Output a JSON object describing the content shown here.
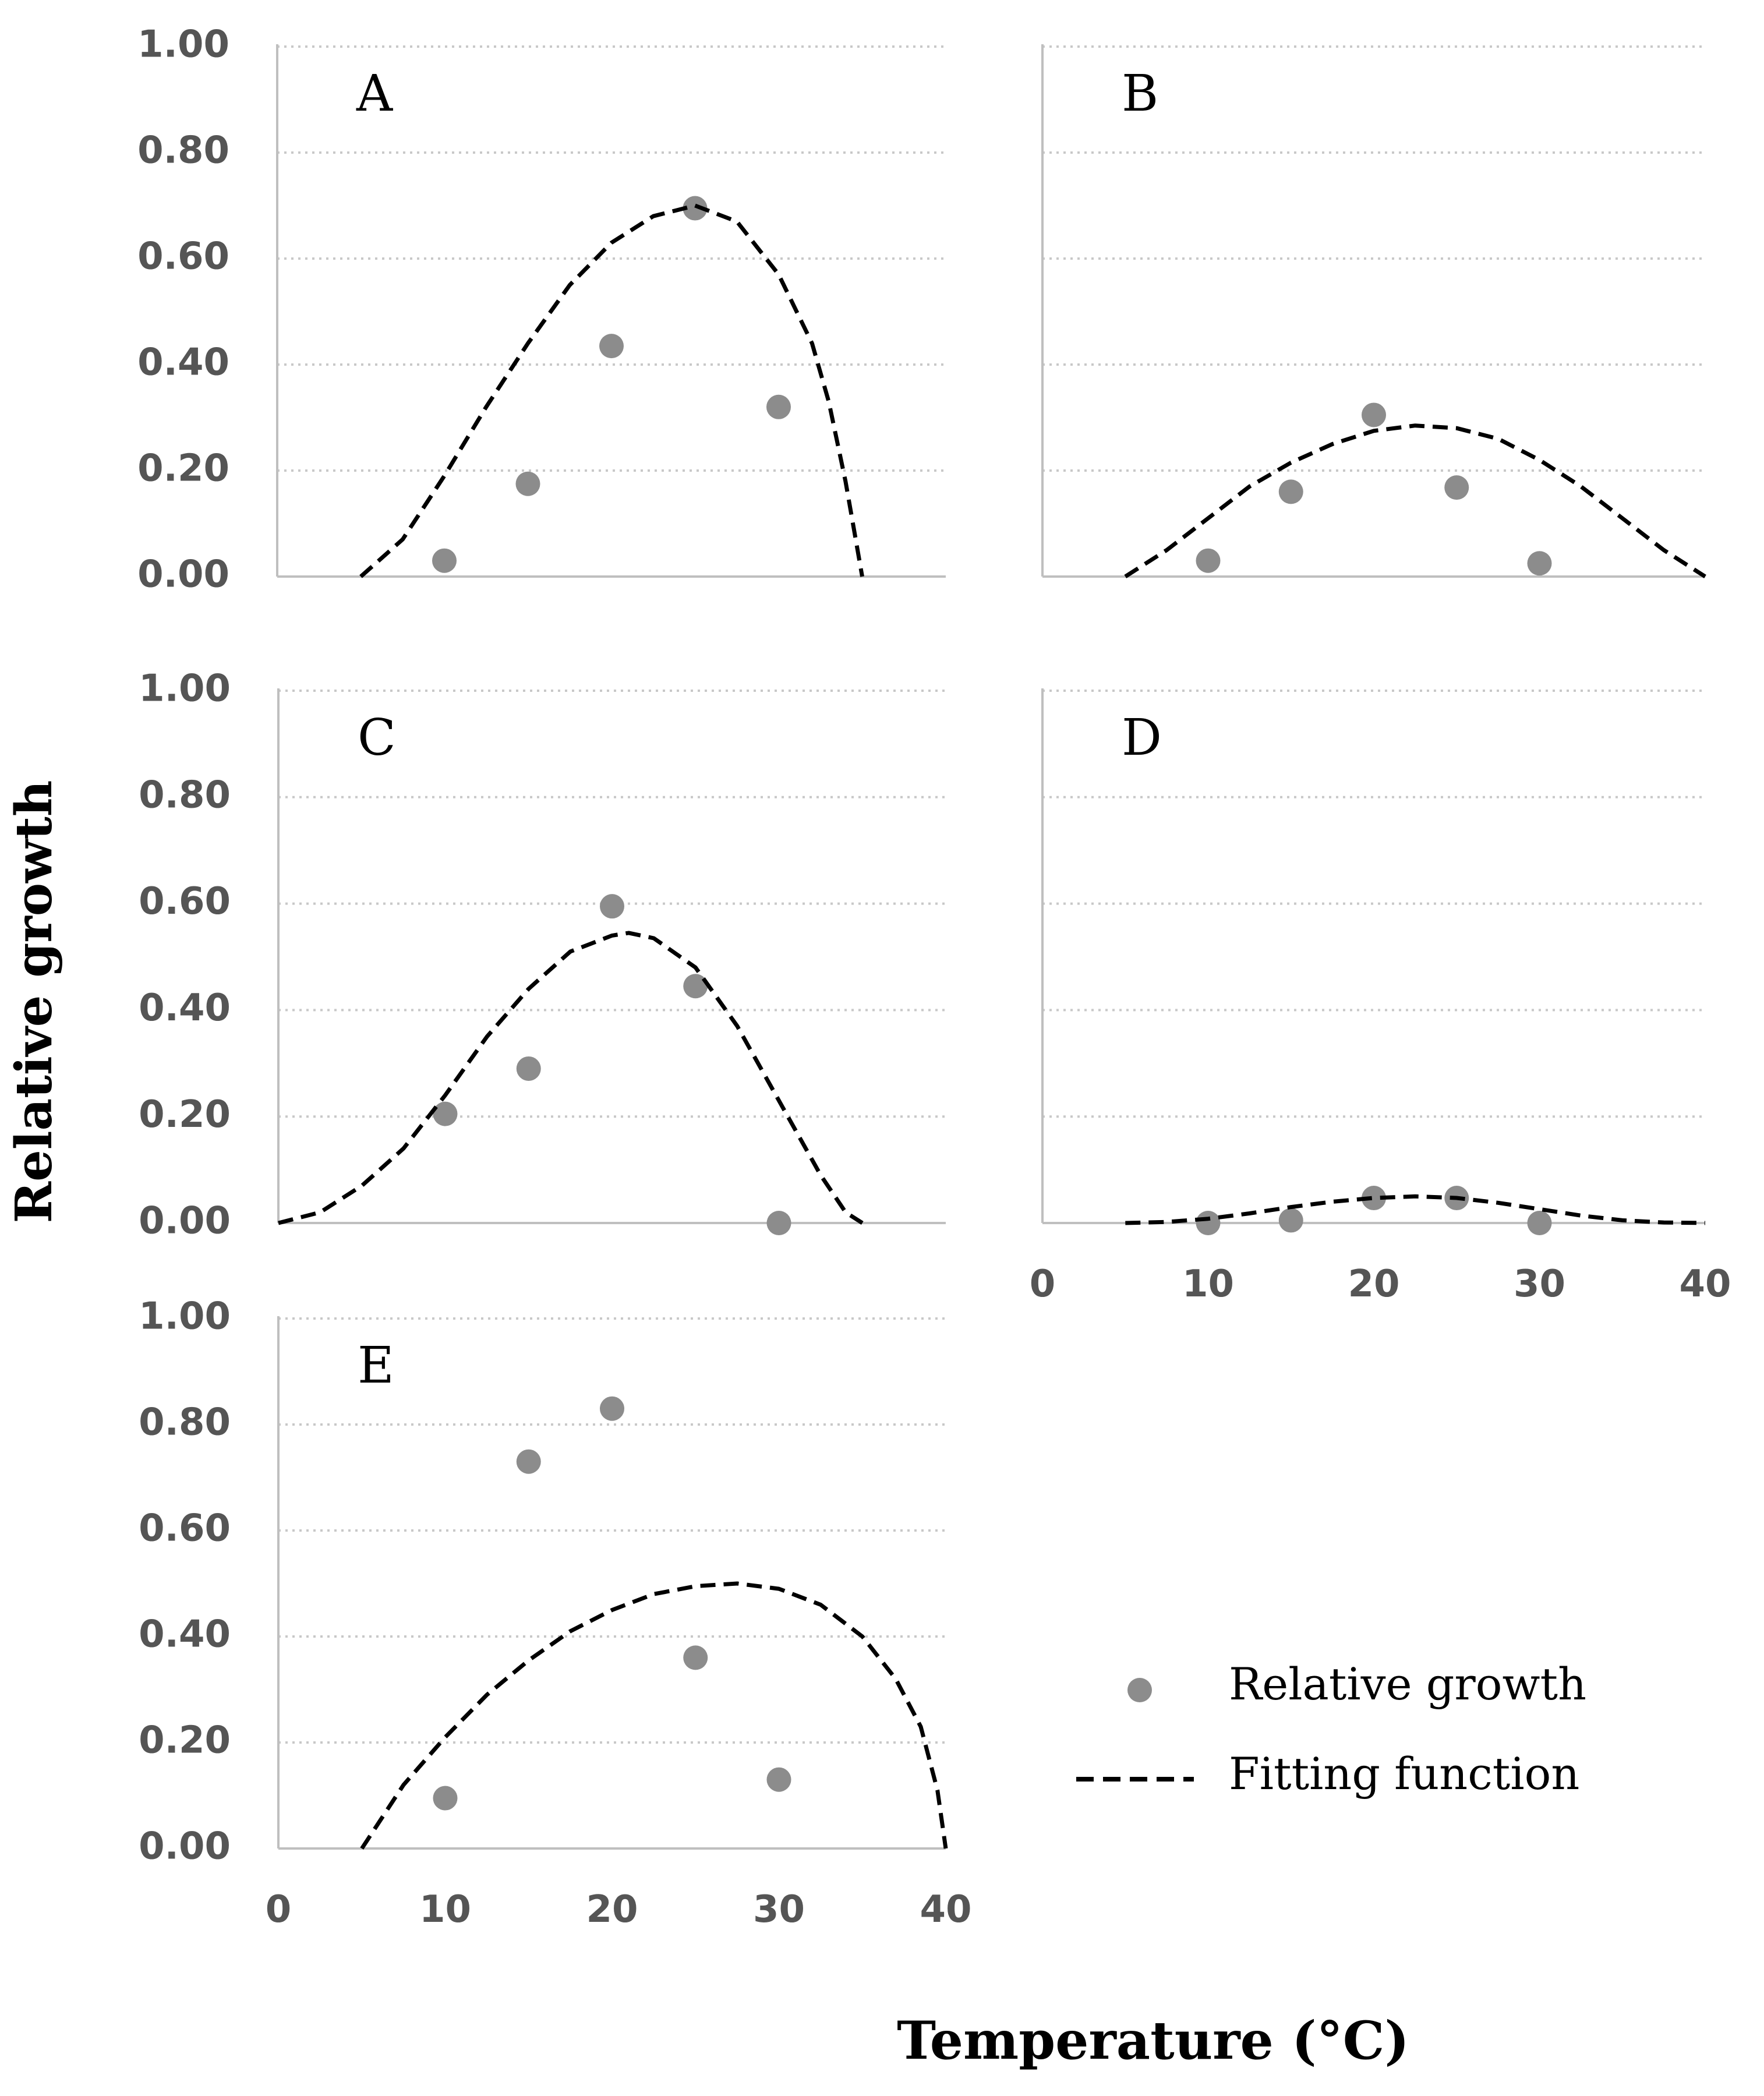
{
  "figure": {
    "ylabel": "Relative growth",
    "xlabel": "Temperature (°C)",
    "legend": {
      "position": "bottom-right",
      "points_label": "Relative growth",
      "curve_label": "Fitting function"
    },
    "colors": {
      "points": "#8c8c8c",
      "curve": "#000000",
      "grid": "#c8c8c8",
      "axis": "#bfbfbf",
      "tick_text": "#555555"
    }
  },
  "chart_data": [
    {
      "type": "scatter",
      "panel": "A",
      "xlim": [
        0,
        40
      ],
      "ylim": [
        0,
        1
      ],
      "yticks": [
        "0.00",
        "0.20",
        "0.40",
        "0.60",
        "0.80",
        "1.00"
      ],
      "xticks": [],
      "grid": true,
      "series": [
        {
          "name": "Relative growth",
          "kind": "points",
          "x": [
            10,
            15,
            20,
            25,
            30
          ],
          "y": [
            0.03,
            0.175,
            0.435,
            0.695,
            0.32
          ]
        },
        {
          "name": "Fitting function",
          "kind": "dashed-line",
          "x": [
            5,
            7.5,
            10,
            12.5,
            15,
            17.5,
            20,
            22.5,
            25,
            27.5,
            30,
            32,
            33,
            34,
            34.5,
            35
          ],
          "y": [
            0,
            0.07,
            0.19,
            0.32,
            0.44,
            0.55,
            0.63,
            0.68,
            0.7,
            0.67,
            0.57,
            0.44,
            0.33,
            0.18,
            0.09,
            0
          ]
        }
      ]
    },
    {
      "type": "scatter",
      "panel": "B",
      "xlim": [
        0,
        40
      ],
      "ylim": [
        0,
        1
      ],
      "yticks": [],
      "xticks": [],
      "grid": true,
      "series": [
        {
          "name": "Relative growth",
          "kind": "points",
          "x": [
            10,
            15,
            20,
            25,
            30
          ],
          "y": [
            0.03,
            0.16,
            0.305,
            0.168,
            0.025
          ]
        },
        {
          "name": "Fitting function",
          "kind": "dashed-line",
          "x": [
            5,
            7.5,
            10,
            12.5,
            15,
            17.5,
            20,
            22.5,
            25,
            27.5,
            30,
            32.5,
            35,
            37.5,
            40
          ],
          "y": [
            0,
            0.05,
            0.11,
            0.17,
            0.215,
            0.25,
            0.275,
            0.285,
            0.28,
            0.26,
            0.22,
            0.17,
            0.11,
            0.05,
            0
          ]
        }
      ]
    },
    {
      "type": "scatter",
      "panel": "C",
      "xlim": [
        0,
        40
      ],
      "ylim": [
        0,
        1
      ],
      "yticks": [
        "0.00",
        "0.20",
        "0.40",
        "0.60",
        "0.80",
        "1.00"
      ],
      "xticks": [],
      "grid": true,
      "series": [
        {
          "name": "Relative growth",
          "kind": "points",
          "x": [
            10,
            15,
            20,
            25,
            30
          ],
          "y": [
            0.205,
            0.29,
            0.595,
            0.445,
            0.0
          ]
        },
        {
          "name": "Fitting function",
          "kind": "dashed-line",
          "x": [
            0,
            2.5,
            5,
            7.5,
            10,
            12.5,
            15,
            17.5,
            20,
            21,
            22.5,
            25,
            27.5,
            30,
            32.5,
            34,
            35
          ],
          "y": [
            0,
            0.02,
            0.07,
            0.14,
            0.24,
            0.35,
            0.44,
            0.51,
            0.54,
            0.545,
            0.535,
            0.48,
            0.37,
            0.23,
            0.09,
            0.02,
            0
          ]
        }
      ]
    },
    {
      "type": "scatter",
      "panel": "D",
      "xlim": [
        0,
        40
      ],
      "ylim": [
        0,
        1
      ],
      "yticks": [],
      "xticks": [
        "0",
        "10",
        "20",
        "30",
        "40"
      ],
      "grid": true,
      "series": [
        {
          "name": "Relative growth",
          "kind": "points",
          "x": [
            10,
            15,
            20,
            25,
            30
          ],
          "y": [
            0.0,
            0.005,
            0.047,
            0.047,
            0.0
          ]
        },
        {
          "name": "Fitting function",
          "kind": "dashed-line",
          "x": [
            5,
            7.5,
            10,
            12.5,
            15,
            17.5,
            20,
            22.5,
            25,
            27.5,
            30,
            32.5,
            35,
            37.5,
            40
          ],
          "y": [
            0,
            0.002,
            0.008,
            0.018,
            0.03,
            0.04,
            0.047,
            0.05,
            0.047,
            0.038,
            0.026,
            0.014,
            0.005,
            0.001,
            0
          ]
        }
      ]
    },
    {
      "type": "scatter",
      "panel": "E",
      "xlim": [
        0,
        40
      ],
      "ylim": [
        0,
        1
      ],
      "yticks": [
        "0.00",
        "0.20",
        "0.40",
        "0.60",
        "0.80",
        "1.00"
      ],
      "xticks": [
        "0",
        "10",
        "20",
        "30",
        "40"
      ],
      "grid": true,
      "series": [
        {
          "name": "Relative growth",
          "kind": "points",
          "x": [
            10,
            15,
            20,
            25,
            30
          ],
          "y": [
            0.095,
            0.73,
            0.83,
            0.36,
            0.13
          ]
        },
        {
          "name": "Fitting function",
          "kind": "dashed-line",
          "x": [
            5,
            7.5,
            10,
            12.5,
            15,
            17.5,
            20,
            22.5,
            25,
            27.5,
            30,
            32.5,
            35,
            37,
            38.5,
            39.5,
            40
          ],
          "y": [
            0,
            0.12,
            0.21,
            0.29,
            0.355,
            0.41,
            0.45,
            0.48,
            0.495,
            0.5,
            0.49,
            0.46,
            0.4,
            0.32,
            0.23,
            0.11,
            0
          ]
        }
      ]
    }
  ]
}
